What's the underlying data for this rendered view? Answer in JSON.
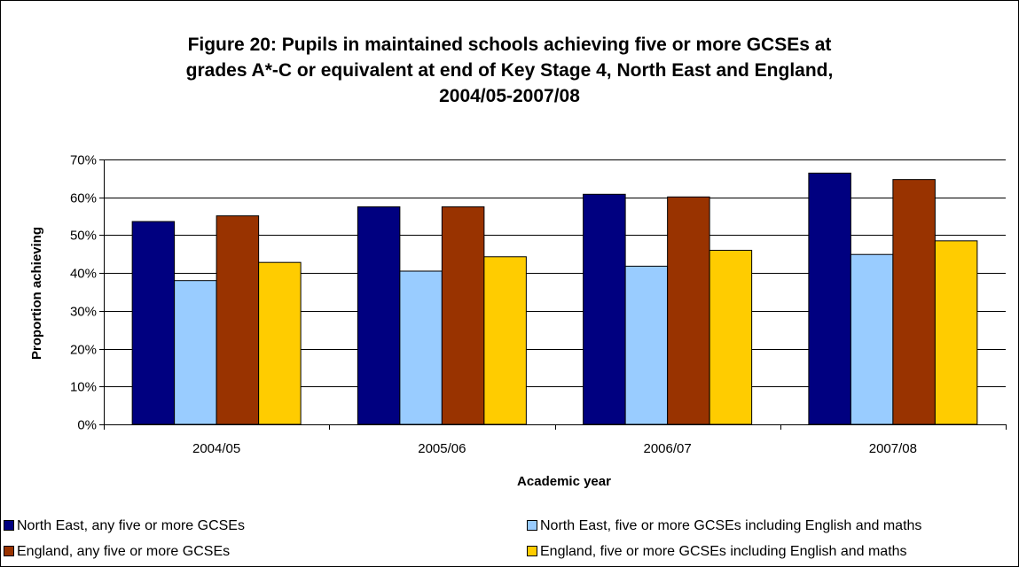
{
  "chart_data": {
    "type": "bar",
    "title": "Figure 20: Pupils in maintained schools achieving five or more GCSEs at grades A*-C or equivalent at end of Key Stage 4, North East and England, 2004/05-2007/08",
    "title_lines": [
      "Figure 20: Pupils in maintained schools achieving five or more GCSEs at",
      "grades A*-C or equivalent at end of Key Stage 4, North East and England,",
      "2004/05-2007/08"
    ],
    "xlabel": "Academic year",
    "ylabel": "Proportion achieving",
    "categories": [
      "2004/05",
      "2005/06",
      "2006/07",
      "2007/08"
    ],
    "ylim": [
      0,
      0.7
    ],
    "yticks": [
      "0%",
      "10%",
      "20%",
      "30%",
      "40%",
      "50%",
      "60%",
      "70%"
    ],
    "grid": true,
    "legend_position": "bottom",
    "series": [
      {
        "name": "North East, any five or more GCSEs",
        "color": "#000080",
        "values": [
          0.536,
          0.575,
          0.608,
          0.664
        ]
      },
      {
        "name": "North East, five or more GCSEs including English and maths",
        "color": "#99ccff",
        "values": [
          0.38,
          0.405,
          0.418,
          0.449
        ]
      },
      {
        "name": "England, any five or more GCSEs",
        "color": "#993300",
        "values": [
          0.551,
          0.575,
          0.601,
          0.647
        ]
      },
      {
        "name": "England, five or more GCSEs including English and maths",
        "color": "#ffcc00",
        "values": [
          0.428,
          0.443,
          0.46,
          0.485
        ]
      }
    ]
  }
}
